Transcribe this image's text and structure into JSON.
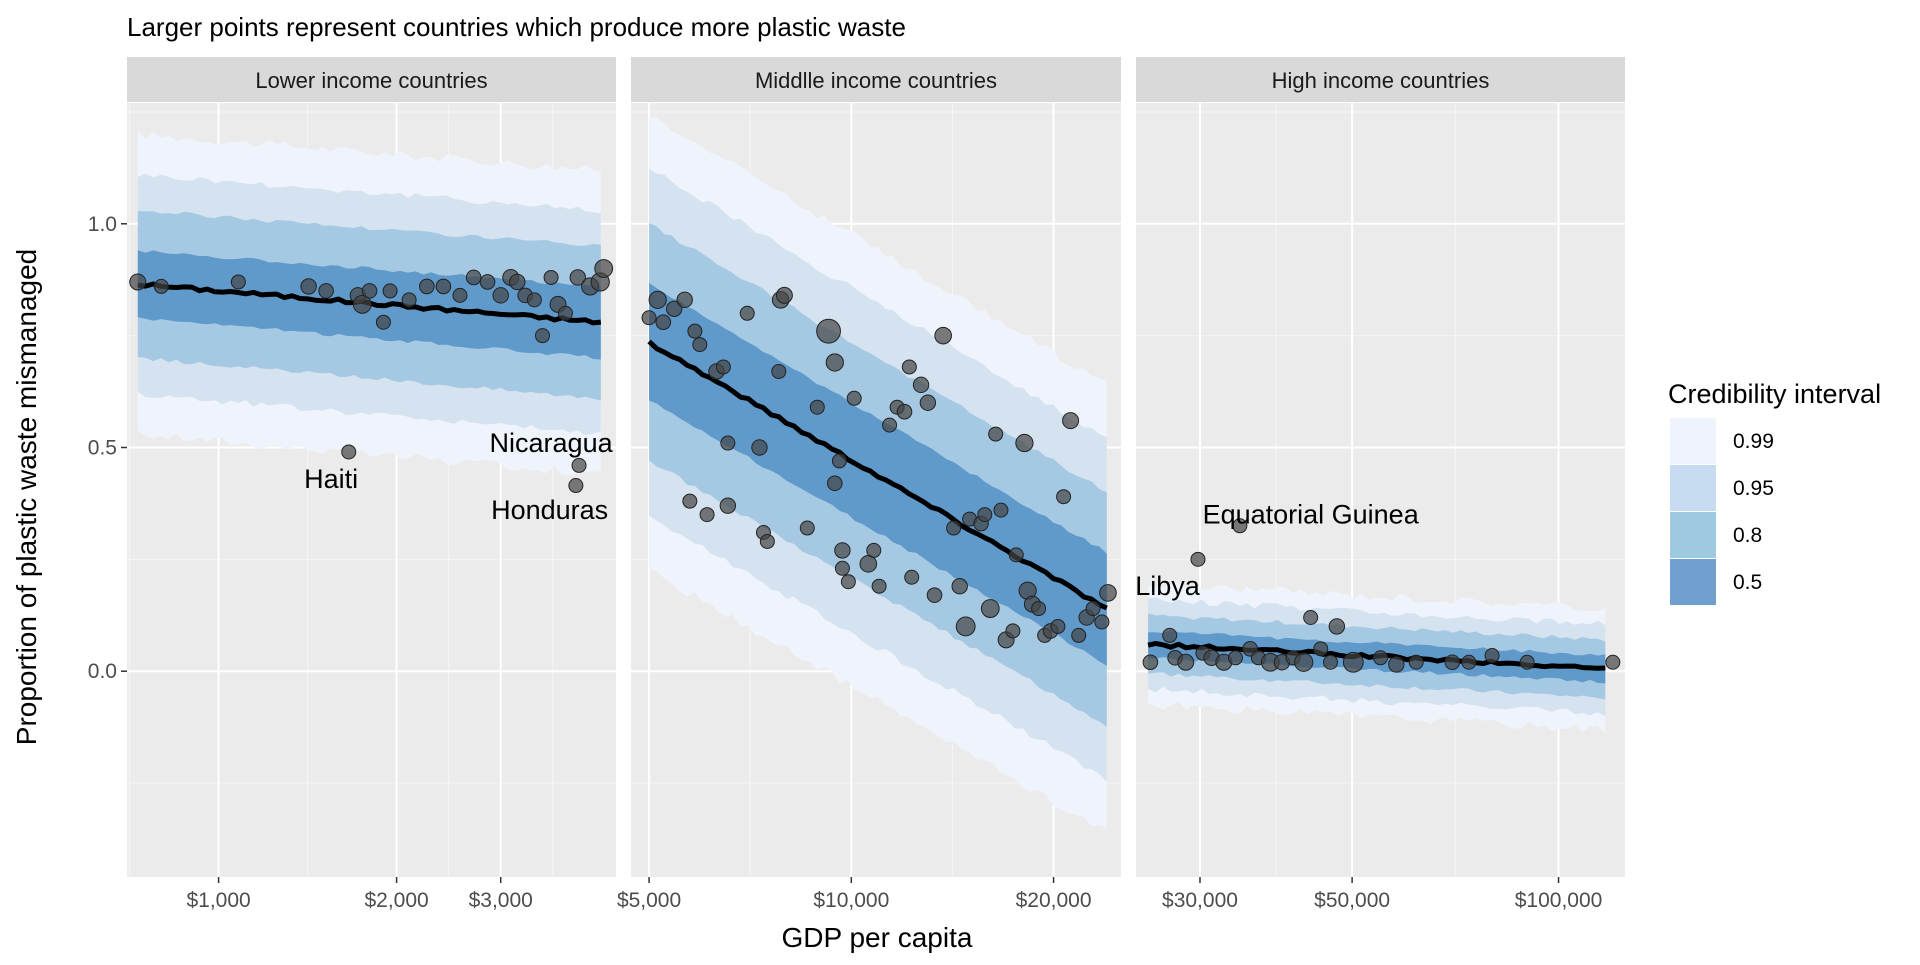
{
  "chart_data": {
    "type": "scatter",
    "title": "Larger points represent countries which produce more plastic waste",
    "xlabel": "GDP per capita",
    "ylabel": "Proportion of plastic waste mismanaged",
    "x_scale": "log",
    "ylim": [
      -0.46,
      1.27
    ],
    "y_ticks": [
      0.0,
      0.5,
      1.0
    ],
    "y_tick_labels": [
      "0.0",
      "0.5",
      "1.0"
    ],
    "grid": true,
    "legend": {
      "title": "Credibility interval",
      "position": "right",
      "items": [
        {
          "label": "0.99",
          "color": "#eff3fb"
        },
        {
          "label": "0.95",
          "color": "#c6dbef"
        },
        {
          "label": "0.8",
          "color": "#9ecae1"
        },
        {
          "label": "0.5",
          "color": "#6e9fcd"
        }
      ]
    },
    "band_colors": {
      "0.99": "#eff3fb",
      "0.95": "#d5e3f0",
      "0.8": "#a5c9e2",
      "0.5": "#5f9acb"
    },
    "line_color": "#000000",
    "point_color": "#444444",
    "panels": [
      {
        "name": "Lower income countries",
        "xlim": [
          700,
          4700
        ],
        "x_ticks": [
          1000,
          2000,
          3000
        ],
        "x_tick_labels": [
          "$1,000",
          "$2,000",
          "$3,000"
        ],
        "fit": {
          "x": [
            730,
            4430
          ],
          "median": [
            0.865,
            0.78
          ],
          "half_width_50": [
            0.075,
            0.08
          ],
          "half_width_80": [
            0.165,
            0.17
          ],
          "half_width_95": [
            0.245,
            0.25
          ],
          "half_width_99": [
            0.335,
            0.34
          ]
        },
        "points": [
          {
            "x": 730,
            "y": 0.87,
            "size": 1.3
          },
          {
            "x": 800,
            "y": 0.86,
            "size": 1.0
          },
          {
            "x": 1080,
            "y": 0.87,
            "size": 1.0
          },
          {
            "x": 1420,
            "y": 0.86,
            "size": 1.2
          },
          {
            "x": 1520,
            "y": 0.85,
            "size": 1.1
          },
          {
            "x": 1720,
            "y": 0.84,
            "size": 1.2
          },
          {
            "x": 1750,
            "y": 0.82,
            "size": 1.6
          },
          {
            "x": 1800,
            "y": 0.85,
            "size": 1.1
          },
          {
            "x": 1900,
            "y": 0.78,
            "size": 1.0
          },
          {
            "x": 1950,
            "y": 0.85,
            "size": 1.0
          },
          {
            "x": 2100,
            "y": 0.83,
            "size": 1.0
          },
          {
            "x": 2250,
            "y": 0.86,
            "size": 1.1
          },
          {
            "x": 2400,
            "y": 0.86,
            "size": 1.1
          },
          {
            "x": 2560,
            "y": 0.84,
            "size": 1.0
          },
          {
            "x": 2700,
            "y": 0.88,
            "size": 1.1
          },
          {
            "x": 2850,
            "y": 0.87,
            "size": 1.1
          },
          {
            "x": 3000,
            "y": 0.84,
            "size": 1.2
          },
          {
            "x": 3120,
            "y": 0.88,
            "size": 1.3
          },
          {
            "x": 3200,
            "y": 0.87,
            "size": 1.2
          },
          {
            "x": 3300,
            "y": 0.84,
            "size": 1.1
          },
          {
            "x": 3420,
            "y": 0.83,
            "size": 1.0
          },
          {
            "x": 3530,
            "y": 0.75,
            "size": 1.0
          },
          {
            "x": 3650,
            "y": 0.88,
            "size": 1.0
          },
          {
            "x": 3750,
            "y": 0.82,
            "size": 1.3
          },
          {
            "x": 3860,
            "y": 0.8,
            "size": 1.0
          },
          {
            "x": 4050,
            "y": 0.88,
            "size": 1.2
          },
          {
            "x": 4250,
            "y": 0.86,
            "size": 1.5
          },
          {
            "x": 4420,
            "y": 0.87,
            "size": 1.7
          },
          {
            "x": 4480,
            "y": 0.9,
            "size": 1.6
          },
          {
            "x": 1660,
            "y": 0.49,
            "size": 1.0
          },
          {
            "x": 4070,
            "y": 0.46,
            "size": 1.0
          },
          {
            "x": 4020,
            "y": 0.415,
            "size": 1.0
          }
        ],
        "annotations": [
          {
            "text": "Haiti",
            "x": 1550,
            "y": 0.43
          },
          {
            "text": "Nicaragua",
            "x": 3650,
            "y": 0.51
          },
          {
            "text": "Honduras",
            "x": 3630,
            "y": 0.36
          }
        ]
      },
      {
        "name": "Middlle income countries",
        "xlim": [
          4700,
          25200
        ],
        "x_ticks": [
          5000,
          10000,
          20000
        ],
        "x_tick_labels": [
          "$5,000",
          "$10,000",
          "$20,000"
        ],
        "fit": {
          "x": [
            5000,
            24000
          ],
          "median": [
            0.735,
            0.14
          ],
          "half_width_50": [
            0.13,
            0.125
          ],
          "half_width_80": [
            0.265,
            0.26
          ],
          "half_width_95": [
            0.39,
            0.38
          ],
          "half_width_99": [
            0.51,
            0.5
          ]
        },
        "points": [
          {
            "x": 5000,
            "y": 0.79,
            "size": 1.0
          },
          {
            "x": 5150,
            "y": 0.83,
            "size": 1.5
          },
          {
            "x": 5250,
            "y": 0.78,
            "size": 1.1
          },
          {
            "x": 5450,
            "y": 0.81,
            "size": 1.2
          },
          {
            "x": 5650,
            "y": 0.83,
            "size": 1.2
          },
          {
            "x": 5850,
            "y": 0.76,
            "size": 1.0
          },
          {
            "x": 5950,
            "y": 0.73,
            "size": 1.0
          },
          {
            "x": 5750,
            "y": 0.38,
            "size": 1.0
          },
          {
            "x": 6100,
            "y": 0.35,
            "size": 1.0
          },
          {
            "x": 6300,
            "y": 0.67,
            "size": 1.2
          },
          {
            "x": 6450,
            "y": 0.68,
            "size": 1.0
          },
          {
            "x": 6550,
            "y": 0.51,
            "size": 1.0
          },
          {
            "x": 6550,
            "y": 0.37,
            "size": 1.2
          },
          {
            "x": 7000,
            "y": 0.8,
            "size": 1.0
          },
          {
            "x": 7300,
            "y": 0.5,
            "size": 1.2
          },
          {
            "x": 7400,
            "y": 0.31,
            "size": 1.0
          },
          {
            "x": 7500,
            "y": 0.29,
            "size": 1.0
          },
          {
            "x": 7800,
            "y": 0.67,
            "size": 1.0
          },
          {
            "x": 7850,
            "y": 0.83,
            "size": 1.4
          },
          {
            "x": 7950,
            "y": 0.84,
            "size": 1.3
          },
          {
            "x": 8600,
            "y": 0.32,
            "size": 1.0
          },
          {
            "x": 8900,
            "y": 0.59,
            "size": 1.0
          },
          {
            "x": 9250,
            "y": 0.76,
            "size": 2.9
          },
          {
            "x": 9450,
            "y": 0.69,
            "size": 1.5
          },
          {
            "x": 9450,
            "y": 0.42,
            "size": 1.1
          },
          {
            "x": 9600,
            "y": 0.47,
            "size": 1.0
          },
          {
            "x": 9700,
            "y": 0.27,
            "size": 1.2
          },
          {
            "x": 9700,
            "y": 0.23,
            "size": 1.0
          },
          {
            "x": 9900,
            "y": 0.2,
            "size": 1.0
          },
          {
            "x": 10100,
            "y": 0.61,
            "size": 1.0
          },
          {
            "x": 10600,
            "y": 0.24,
            "size": 1.4
          },
          {
            "x": 10800,
            "y": 0.27,
            "size": 1.0
          },
          {
            "x": 11000,
            "y": 0.19,
            "size": 1.0
          },
          {
            "x": 11400,
            "y": 0.55,
            "size": 1.0
          },
          {
            "x": 11700,
            "y": 0.59,
            "size": 1.0
          },
          {
            "x": 12000,
            "y": 0.58,
            "size": 1.1
          },
          {
            "x": 12200,
            "y": 0.68,
            "size": 1.0
          },
          {
            "x": 12300,
            "y": 0.21,
            "size": 1.0
          },
          {
            "x": 12700,
            "y": 0.64,
            "size": 1.2
          },
          {
            "x": 13000,
            "y": 0.6,
            "size": 1.2
          },
          {
            "x": 13300,
            "y": 0.17,
            "size": 1.1
          },
          {
            "x": 13700,
            "y": 0.75,
            "size": 1.4
          },
          {
            "x": 14200,
            "y": 0.32,
            "size": 1.0
          },
          {
            "x": 14500,
            "y": 0.19,
            "size": 1.2
          },
          {
            "x": 14800,
            "y": 0.1,
            "size": 1.8
          },
          {
            "x": 15000,
            "y": 0.34,
            "size": 1.0
          },
          {
            "x": 15600,
            "y": 0.33,
            "size": 1.1
          },
          {
            "x": 15800,
            "y": 0.35,
            "size": 1.0
          },
          {
            "x": 16100,
            "y": 0.14,
            "size": 1.6
          },
          {
            "x": 16400,
            "y": 0.53,
            "size": 1.0
          },
          {
            "x": 16700,
            "y": 0.36,
            "size": 1.0
          },
          {
            "x": 17000,
            "y": 0.07,
            "size": 1.3
          },
          {
            "x": 17400,
            "y": 0.09,
            "size": 1.0
          },
          {
            "x": 17600,
            "y": 0.26,
            "size": 1.0
          },
          {
            "x": 18100,
            "y": 0.51,
            "size": 1.5
          },
          {
            "x": 18300,
            "y": 0.18,
            "size": 1.5
          },
          {
            "x": 18600,
            "y": 0.15,
            "size": 1.3
          },
          {
            "x": 19000,
            "y": 0.14,
            "size": 1.0
          },
          {
            "x": 19400,
            "y": 0.08,
            "size": 1.0
          },
          {
            "x": 19800,
            "y": 0.09,
            "size": 1.1
          },
          {
            "x": 20300,
            "y": 0.1,
            "size": 1.0
          },
          {
            "x": 20700,
            "y": 0.39,
            "size": 1.0
          },
          {
            "x": 21200,
            "y": 0.56,
            "size": 1.3
          },
          {
            "x": 21800,
            "y": 0.08,
            "size": 1.0
          },
          {
            "x": 22400,
            "y": 0.12,
            "size": 1.2
          },
          {
            "x": 22900,
            "y": 0.14,
            "size": 1.0
          },
          {
            "x": 23600,
            "y": 0.11,
            "size": 1.0
          },
          {
            "x": 24100,
            "y": 0.175,
            "size": 1.4
          }
        ],
        "annotations": []
      },
      {
        "name": "High income countries",
        "xlim": [
          24200,
          125000
        ],
        "x_ticks": [
          30000,
          50000,
          100000
        ],
        "x_tick_labels": [
          "$30,000",
          "$50,000",
          "$100,000"
        ],
        "fit": {
          "x": [
            25200,
            117000
          ],
          "median": [
            0.06,
            0.005
          ],
          "half_width_50": [
            0.03,
            0.03
          ],
          "half_width_80": [
            0.065,
            0.065
          ],
          "half_width_95": [
            0.1,
            0.1
          ],
          "half_width_99": [
            0.135,
            0.135
          ]
        },
        "points": [
          {
            "x": 25400,
            "y": 0.02,
            "size": 1.1
          },
          {
            "x": 27100,
            "y": 0.08,
            "size": 1.0
          },
          {
            "x": 27600,
            "y": 0.03,
            "size": 1.1
          },
          {
            "x": 28600,
            "y": 0.02,
            "size": 1.3
          },
          {
            "x": 29800,
            "y": 0.25,
            "size": 1.0
          },
          {
            "x": 30300,
            "y": 0.04,
            "size": 1.0
          },
          {
            "x": 31200,
            "y": 0.03,
            "size": 1.2
          },
          {
            "x": 32500,
            "y": 0.02,
            "size": 1.3
          },
          {
            "x": 33800,
            "y": 0.03,
            "size": 1.0
          },
          {
            "x": 34300,
            "y": 0.325,
            "size": 1.0
          },
          {
            "x": 35500,
            "y": 0.05,
            "size": 1.1
          },
          {
            "x": 36500,
            "y": 0.03,
            "size": 1.0
          },
          {
            "x": 38000,
            "y": 0.02,
            "size": 1.6
          },
          {
            "x": 39500,
            "y": 0.02,
            "size": 1.2
          },
          {
            "x": 41000,
            "y": 0.03,
            "size": 1.0
          },
          {
            "x": 42500,
            "y": 0.02,
            "size": 1.7
          },
          {
            "x": 43500,
            "y": 0.12,
            "size": 1.0
          },
          {
            "x": 45000,
            "y": 0.05,
            "size": 1.0
          },
          {
            "x": 46500,
            "y": 0.02,
            "size": 1.0
          },
          {
            "x": 47500,
            "y": 0.1,
            "size": 1.2
          },
          {
            "x": 50200,
            "y": 0.02,
            "size": 2.0
          },
          {
            "x": 55000,
            "y": 0.03,
            "size": 1.0
          },
          {
            "x": 58000,
            "y": 0.015,
            "size": 1.2
          },
          {
            "x": 62000,
            "y": 0.02,
            "size": 1.0
          },
          {
            "x": 70000,
            "y": 0.02,
            "size": 1.1
          },
          {
            "x": 74000,
            "y": 0.02,
            "size": 1.0
          },
          {
            "x": 80000,
            "y": 0.035,
            "size": 1.0
          },
          {
            "x": 90000,
            "y": 0.02,
            "size": 1.0
          },
          {
            "x": 120000,
            "y": 0.02,
            "size": 1.0
          }
        ],
        "annotations": [
          {
            "text": "Equatorial Guinea",
            "x": 43500,
            "y": 0.35
          },
          {
            "text": "Libya",
            "x": 26900,
            "y": 0.19
          }
        ]
      }
    ]
  }
}
